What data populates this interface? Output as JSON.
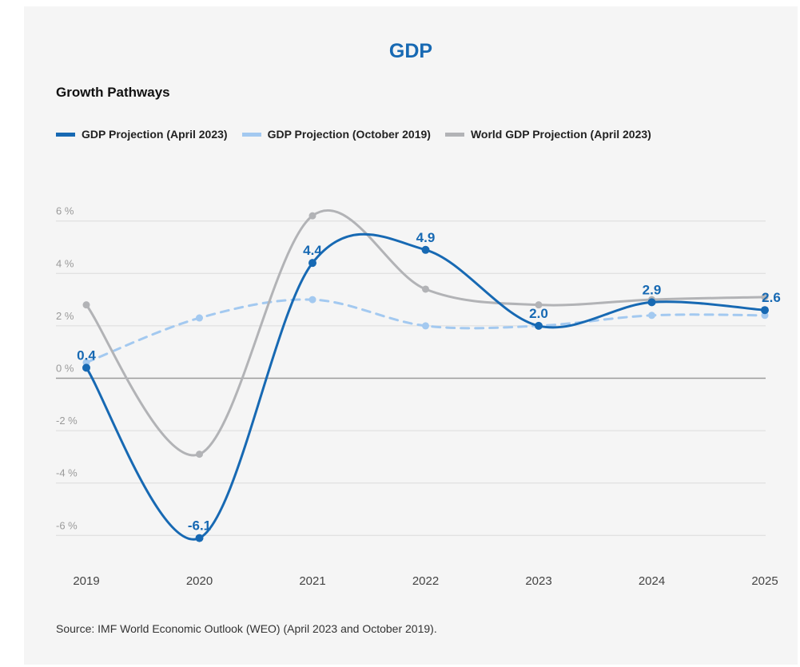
{
  "chart_data": {
    "type": "line",
    "title": "GDP",
    "subtitle": "Growth Pathways",
    "x": [
      "2019",
      "2020",
      "2021",
      "2022",
      "2023",
      "2024",
      "2025"
    ],
    "ylim": [
      -7,
      7.5
    ],
    "yticks": [
      {
        "value": 6,
        "label": "6 %"
      },
      {
        "value": 4,
        "label": "4 %"
      },
      {
        "value": 2,
        "label": "2 %"
      },
      {
        "value": 0,
        "label": "0 %"
      },
      {
        "value": -2,
        "label": "-2 %"
      },
      {
        "value": -4,
        "label": "-4 %"
      },
      {
        "value": -6,
        "label": "-6 %"
      }
    ],
    "grid": true,
    "legend_position": "top-left",
    "series": [
      {
        "name": "GDP Projection (April 2023)",
        "color": "#1769b3",
        "style": "solid",
        "values": [
          0.4,
          -6.1,
          4.4,
          4.9,
          2.0,
          2.9,
          2.6
        ],
        "labels": [
          "0.4",
          "-6.1",
          "4.4",
          "4.9",
          "2.0",
          "2.9",
          "2.6"
        ]
      },
      {
        "name": "GDP Projection (October 2019)",
        "color": "#a3c9f0",
        "style": "dashed",
        "values": [
          0.6,
          2.3,
          3.0,
          2.0,
          2.0,
          2.4,
          2.4
        ]
      },
      {
        "name": "World GDP Projection (April 2023)",
        "color": "#b2b3b6",
        "style": "solid",
        "values": [
          2.8,
          -2.9,
          6.2,
          3.4,
          2.8,
          3.0,
          3.1
        ]
      }
    ]
  },
  "source": "Source: IMF World Economic Outlook (WEO) (April 2023 and October 2019)."
}
